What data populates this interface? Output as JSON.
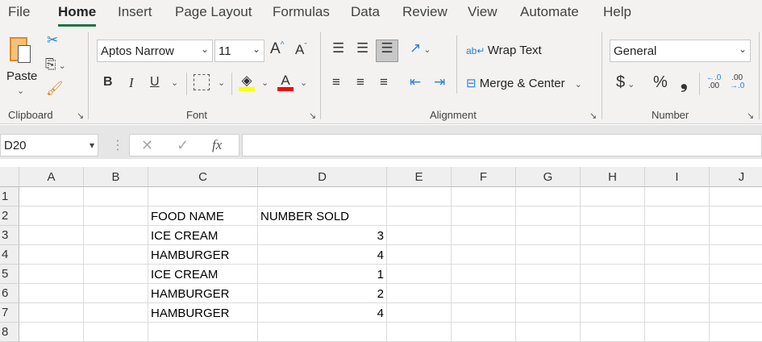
{
  "menu": {
    "tabs": [
      "File",
      "Home",
      "Insert",
      "Page Layout",
      "Formulas",
      "Data",
      "Review",
      "View",
      "Automate",
      "Help"
    ],
    "active": "Home"
  },
  "ribbon": {
    "clipboard": {
      "paste": "Paste",
      "label": "Clipboard"
    },
    "font": {
      "name": "Aptos Narrow",
      "size": "11",
      "label": "Font",
      "bold": "B",
      "italic": "I",
      "underline": "U",
      "fill_color": "#ffff00",
      "font_color": "#ff0000"
    },
    "alignment": {
      "wrap": "Wrap Text",
      "merge": "Merge & Center",
      "label": "Alignment"
    },
    "number": {
      "format": "General",
      "label": "Number",
      "currency": "$",
      "percent": "%",
      "comma": "❟"
    }
  },
  "formula_bar": {
    "name_box": "D20",
    "fx": "fx",
    "value": ""
  },
  "sheet": {
    "columns": [
      "A",
      "B",
      "C",
      "D",
      "E",
      "F",
      "G",
      "H",
      "I",
      "J"
    ],
    "rows": [
      "1",
      "2",
      "3",
      "4",
      "5",
      "6",
      "7",
      "8"
    ],
    "cells": [
      {
        "row": 2,
        "col": "C",
        "value": "FOOD NAME"
      },
      {
        "row": 2,
        "col": "D",
        "value": "NUMBER SOLD"
      },
      {
        "row": 3,
        "col": "C",
        "value": "ICE CREAM"
      },
      {
        "row": 3,
        "col": "D",
        "value": "3",
        "num": true
      },
      {
        "row": 4,
        "col": "C",
        "value": "HAMBURGER"
      },
      {
        "row": 4,
        "col": "D",
        "value": "4",
        "num": true
      },
      {
        "row": 5,
        "col": "C",
        "value": "ICE CREAM"
      },
      {
        "row": 5,
        "col": "D",
        "value": "1",
        "num": true
      },
      {
        "row": 6,
        "col": "C",
        "value": "HAMBURGER"
      },
      {
        "row": 6,
        "col": "D",
        "value": "2",
        "num": true
      },
      {
        "row": 7,
        "col": "C",
        "value": "HAMBURGER"
      },
      {
        "row": 7,
        "col": "D",
        "value": "4",
        "num": true
      }
    ]
  }
}
